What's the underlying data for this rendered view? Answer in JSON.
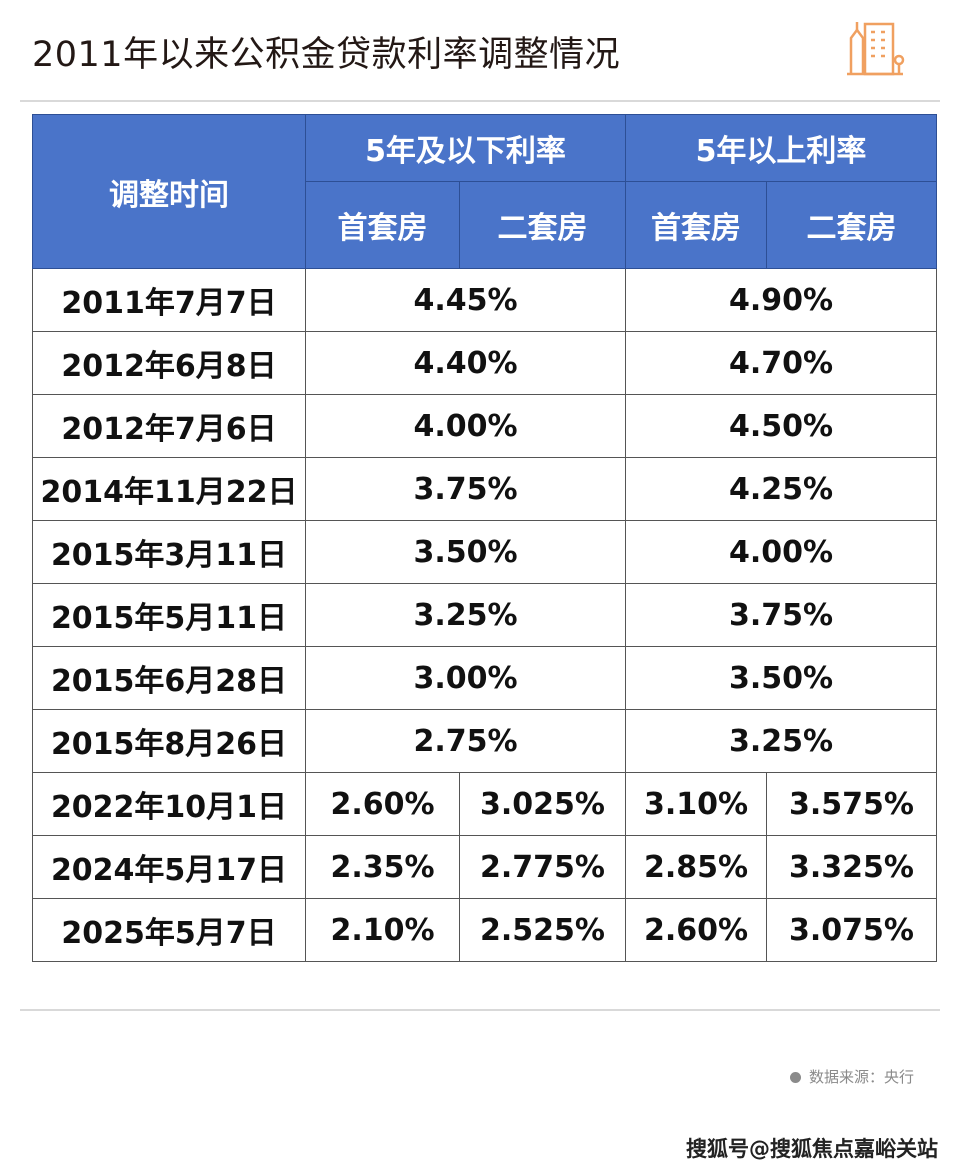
{
  "title": "2011年以来公积金贷款利率调整情况",
  "table": {
    "header_time": "调整时间",
    "group_headers": [
      "5年及以下利率",
      "5年以上利率"
    ],
    "sub_headers": [
      "首套房",
      "二套房",
      "首套房",
      "二套房"
    ],
    "merged_rows": [
      {
        "date": "2011年7月7日",
        "short": "4.45%",
        "long": "4.90%"
      },
      {
        "date": "2012年6月8日",
        "short": "4.40%",
        "long": "4.70%"
      },
      {
        "date": "2012年7月6日",
        "short": "4.00%",
        "long": "4.50%"
      },
      {
        "date": "2014年11月22日",
        "short": "3.75%",
        "long": "4.25%"
      },
      {
        "date": "2015年3月11日",
        "short": "3.50%",
        "long": "4.00%"
      },
      {
        "date": "2015年5月11日",
        "short": "3.25%",
        "long": "3.75%"
      },
      {
        "date": "2015年6月28日",
        "short": "3.00%",
        "long": "3.50%"
      },
      {
        "date": "2015年8月26日",
        "short": "2.75%",
        "long": "3.25%"
      }
    ],
    "split_rows": [
      {
        "date": "2022年10月1日",
        "short_first": "2.60%",
        "short_second": "3.025%",
        "long_first": "3.10%",
        "long_second": "3.575%"
      },
      {
        "date": "2024年5月17日",
        "short_first": "2.35%",
        "short_second": "2.775%",
        "long_first": "2.85%",
        "long_second": "3.325%"
      },
      {
        "date": "2025年5月7日",
        "short_first": "2.10%",
        "short_second": "2.525%",
        "long_first": "2.60%",
        "long_second": "3.075%"
      }
    ]
  },
  "source": "数据来源：央行",
  "watermark": "搜狐号@搜狐焦点嘉峪关站",
  "colors": {
    "header_bg": "#4a74c9",
    "logo": "#f0a060"
  },
  "icons": {
    "logo": "building-icon"
  }
}
